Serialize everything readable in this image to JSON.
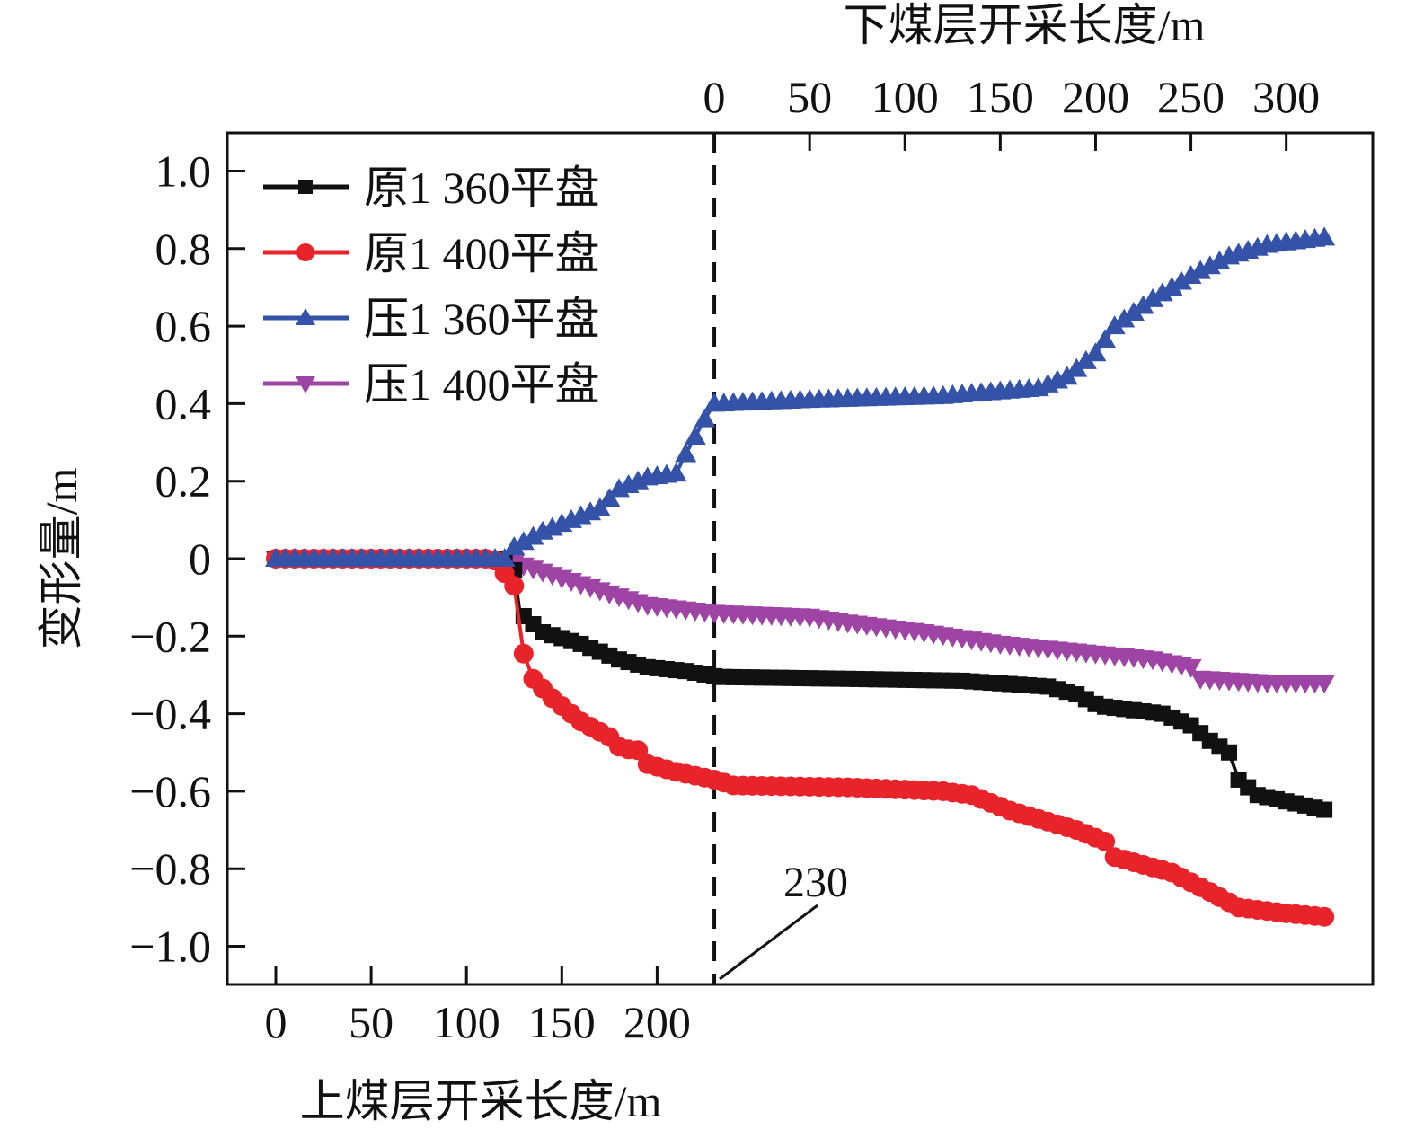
{
  "chart_data": {
    "type": "line",
    "title": "",
    "xlabel_bottom": "上煤层开采长度/m",
    "xlabel_top": "下煤层开采长度/m",
    "ylabel": "变形量/m",
    "x_note": "x values are cumulative mining length: 0–230 on upper seam axis, then 230 + lower seam length",
    "xlim": [
      -25,
      575
    ],
    "ylim": [
      -1.1,
      1.1
    ],
    "bottom_ticks": {
      "values": [
        0,
        50,
        100,
        150,
        200
      ],
      "labels": [
        "0",
        "50",
        "100",
        "150",
        "200"
      ]
    },
    "top_ticks": {
      "values": [
        0,
        50,
        100,
        150,
        200,
        250,
        300
      ],
      "labels": [
        "0",
        "50",
        "100",
        "150",
        "200",
        "250",
        "300"
      ]
    },
    "top_axis_offset": 230,
    "y_ticks": {
      "values": [
        1.0,
        0.8,
        0.6,
        0.4,
        0.2,
        0,
        -0.2,
        -0.4,
        -0.6,
        -0.8,
        -1.0
      ],
      "labels": [
        "1.0",
        "0.8",
        "0.6",
        "0.4",
        "0.2",
        "0",
        "−0.2",
        "−0.4",
        "−0.6",
        "−0.8",
        "−1.0"
      ]
    },
    "divider": {
      "x": 230,
      "label": "230",
      "style": "dashed"
    },
    "legend_placement": "top-left",
    "grid": false,
    "series": [
      {
        "name": "原1 360平盘",
        "color": "#111111",
        "marker": "square",
        "x": [
          0,
          20,
          40,
          60,
          80,
          100,
          120,
          125,
          128,
          140,
          160,
          180,
          195,
          215,
          232,
          300,
          360,
          405,
          420,
          432,
          465,
          480,
          490,
          500,
          505,
          515,
          552
        ],
        "y": [
          0,
          0,
          0,
          0,
          0,
          0,
          0,
          -0.03,
          -0.14,
          -0.19,
          -0.22,
          -0.26,
          -0.28,
          -0.29,
          -0.305,
          -0.31,
          -0.315,
          -0.33,
          -0.35,
          -0.38,
          -0.4,
          -0.43,
          -0.47,
          -0.5,
          -0.57,
          -0.61,
          -0.65
        ]
      },
      {
        "name": "原1 400平盘",
        "color": "#e8242a",
        "marker": "circle",
        "x": [
          0,
          20,
          40,
          60,
          80,
          100,
          110,
          115,
          125,
          130,
          135,
          145,
          160,
          175,
          183,
          188,
          195,
          210,
          230,
          240,
          300,
          350,
          365,
          385,
          420,
          435,
          440,
          470,
          490,
          505,
          530,
          552
        ],
        "y": [
          0,
          0,
          0,
          0,
          0,
          0,
          0,
          -0.005,
          -0.07,
          -0.245,
          -0.31,
          -0.36,
          -0.42,
          -0.46,
          -0.5,
          -0.48,
          -0.53,
          -0.55,
          -0.57,
          -0.585,
          -0.59,
          -0.6,
          -0.61,
          -0.65,
          -0.7,
          -0.73,
          -0.77,
          -0.81,
          -0.86,
          -0.9,
          -0.915,
          -0.925
        ]
      },
      {
        "name": "压1 360平盘",
        "color": "#3352a8",
        "marker": "triangle-up",
        "x": [
          0,
          20,
          40,
          60,
          80,
          100,
          115,
          120,
          125,
          140,
          160,
          170,
          180,
          195,
          210,
          215,
          225,
          230,
          280,
          350,
          400,
          415,
          430,
          440,
          460,
          480,
          500,
          520,
          552
        ],
        "y": [
          0,
          0,
          0,
          0,
          0,
          0,
          0,
          0,
          0.03,
          0.07,
          0.11,
          0.13,
          0.18,
          0.21,
          0.22,
          0.27,
          0.36,
          0.4,
          0.41,
          0.42,
          0.44,
          0.47,
          0.53,
          0.6,
          0.67,
          0.73,
          0.78,
          0.81,
          0.83
        ]
      },
      {
        "name": "压1 400平盘",
        "color": "#9e44a4",
        "marker": "triangle-down",
        "x": [
          0,
          20,
          40,
          60,
          80,
          100,
          110,
          125,
          150,
          175,
          195,
          230,
          280,
          300,
          340,
          380,
          420,
          460,
          480,
          485,
          520,
          552
        ],
        "y": [
          0,
          0,
          0,
          0,
          0,
          0,
          0,
          -0.01,
          -0.05,
          -0.09,
          -0.12,
          -0.14,
          -0.15,
          -0.165,
          -0.19,
          -0.22,
          -0.24,
          -0.26,
          -0.28,
          -0.31,
          -0.32,
          -0.32
        ]
      }
    ]
  }
}
